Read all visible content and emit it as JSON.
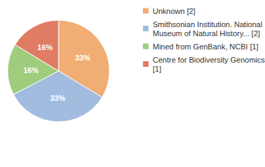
{
  "chart_data": {
    "type": "pie",
    "categories": [
      "Unknown [2]",
      "Smithsonian Institution. National Museum of Natural History... [2]",
      "Mined from GenBank, NCBI [1]",
      "Centre for Biodiversity Genomics [1]"
    ],
    "values": [
      33,
      33,
      16,
      16
    ],
    "value_labels": [
      "33%",
      "33%",
      "16%",
      "16%"
    ],
    "colors": [
      "#f0ae74",
      "#a2bce0",
      "#a0cc7d",
      "#e07c64"
    ],
    "data_labels": true,
    "legend": "right"
  }
}
